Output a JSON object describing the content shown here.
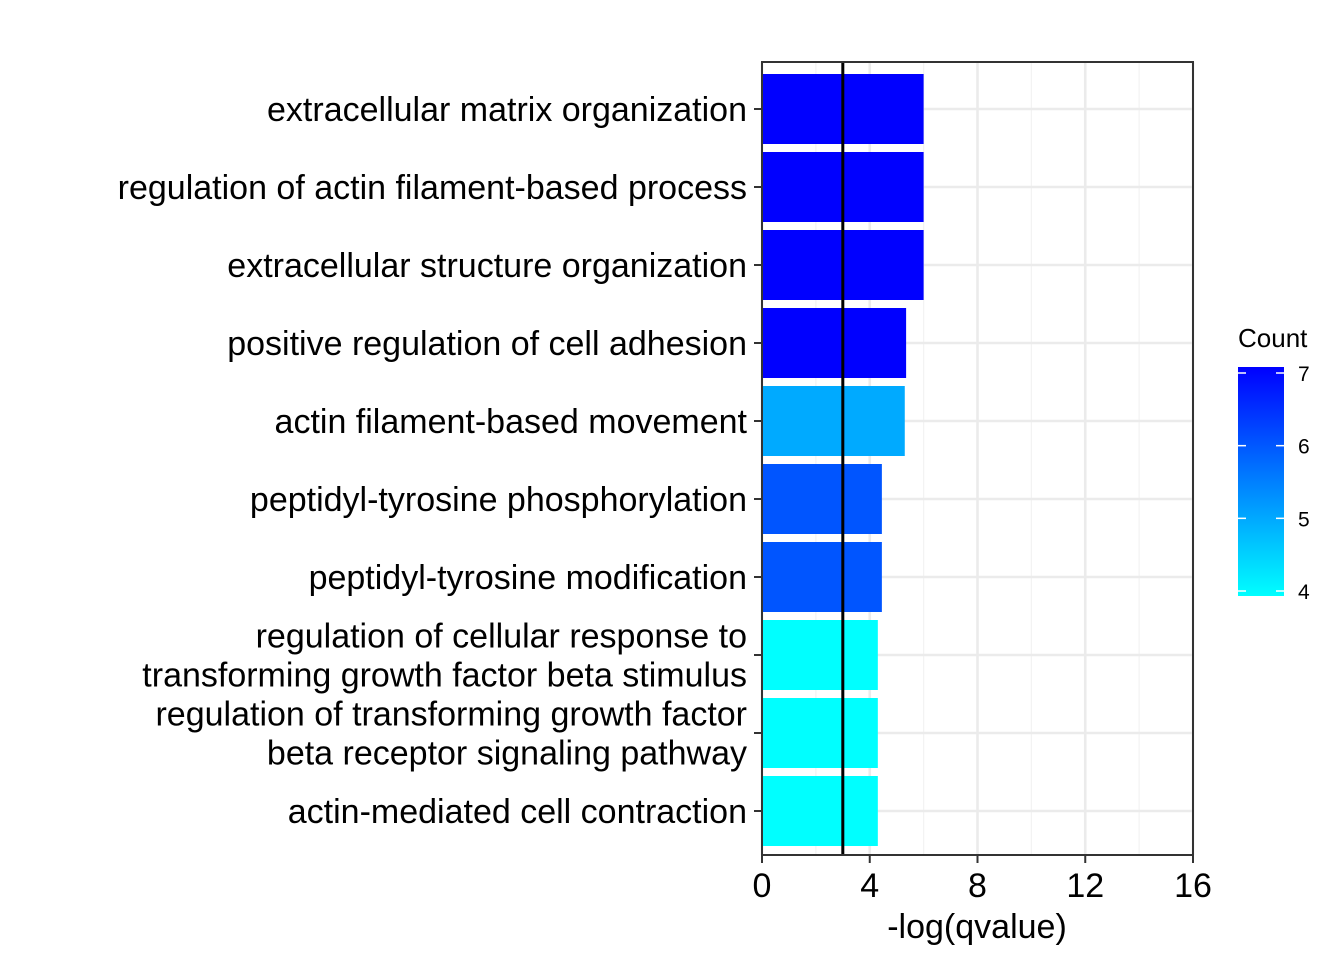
{
  "chart_data": {
    "type": "bar",
    "orientation": "horizontal",
    "categories": [
      "extracellular matrix organization",
      "regulation of actin filament-based process",
      "extracellular structure organization",
      "positive regulation of cell adhesion",
      "actin filament-based movement",
      "peptidyl-tyrosine phosphorylation",
      "peptidyl-tyrosine modification",
      "regulation of cellular response to\ntransforming growth factor beta stimulus",
      "regulation of transforming growth factor\nbeta receptor signaling pathway",
      "actin-mediated cell contraction"
    ],
    "values": [
      6.0,
      6.0,
      6.0,
      5.35,
      5.3,
      4.45,
      4.45,
      4.3,
      4.3,
      4.3
    ],
    "counts": [
      7,
      7,
      7,
      7,
      5,
      6,
      6,
      4,
      4,
      4
    ],
    "xlabel": "-log(qvalue)",
    "ylabel": "",
    "xlim": [
      0,
      16
    ],
    "xticks": [
      0,
      4,
      8,
      12,
      16
    ],
    "reference_line": 3,
    "grid": true,
    "legend": {
      "title": "Count",
      "type": "colorbar",
      "range": [
        4,
        7
      ],
      "ticks": [
        7,
        6,
        5,
        4
      ],
      "color_low": "#00ffff",
      "color_high": "#0000ff",
      "placement": "right"
    }
  }
}
